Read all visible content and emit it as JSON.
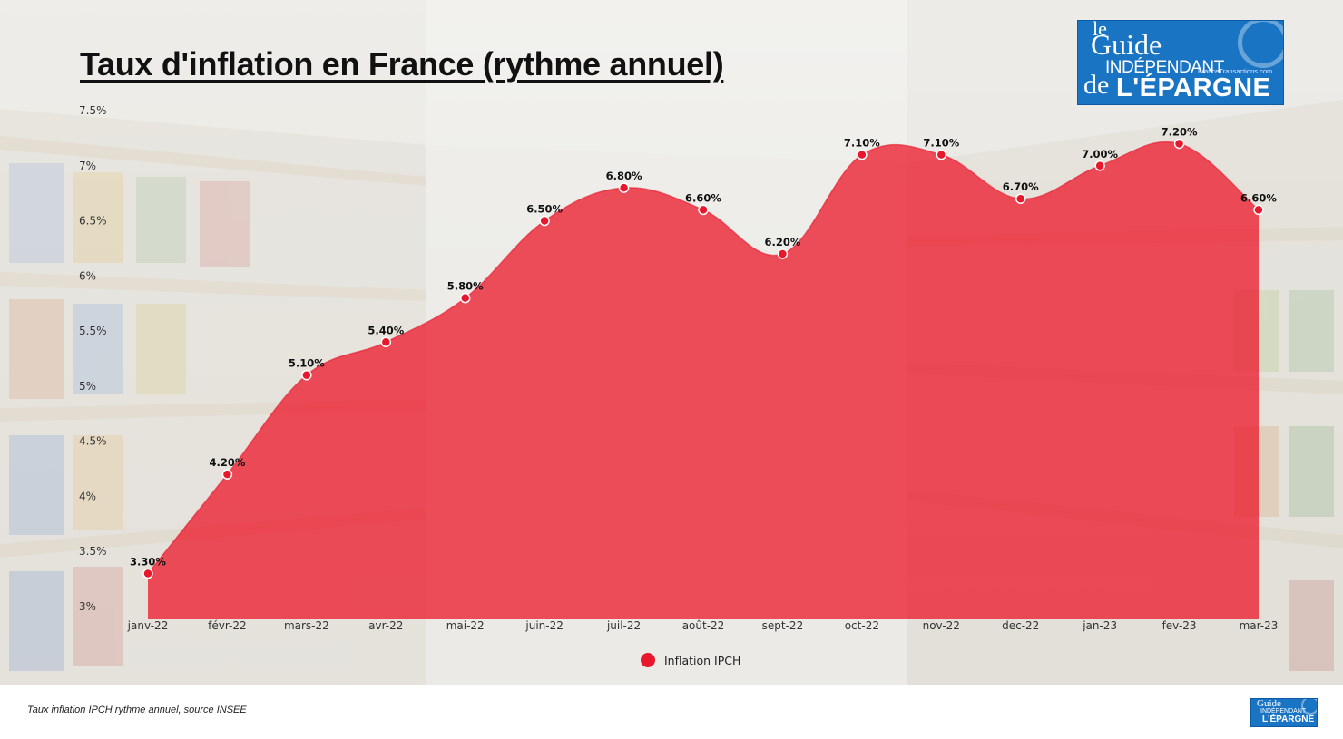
{
  "title": "Taux d'inflation en France (rythme annuel)",
  "source_note": "Taux inflation IPCH rythme annuel, source INSEE",
  "logo": {
    "le": "le",
    "guide": "Guide",
    "independant": "INDÉPENDANT",
    "de": "de",
    "epargne": "L'ÉPARGNE",
    "site": "FranceTransactions.com"
  },
  "colors": {
    "series": "#e8182c",
    "area_fill": "rgba(236, 30, 48, 0.78)",
    "logo_blue": "#1a74c4"
  },
  "chart_data": {
    "type": "area",
    "title": "Taux d'inflation en France (rythme annuel)",
    "xlabel": "",
    "ylabel": "",
    "categories": [
      "janv-22",
      "févr-22",
      "mars-22",
      "avr-22",
      "mai-22",
      "juin-22",
      "juil-22",
      "août-22",
      "sept-22",
      "oct-22",
      "nov-22",
      "dec-22",
      "jan-23",
      "fev-23",
      "mar-23"
    ],
    "series": [
      {
        "name": "Inflation IPCH",
        "values": [
          3.3,
          4.2,
          5.1,
          5.4,
          5.8,
          6.5,
          6.8,
          6.6,
          6.2,
          7.1,
          7.1,
          6.7,
          7.0,
          7.2,
          6.6
        ],
        "labels": [
          "3.30%",
          "4.20%",
          "5.10%",
          "5.40%",
          "5.80%",
          "6.50%",
          "6.80%",
          "6.60%",
          "6.20%",
          "7.10%",
          "7.10%",
          "6.70%",
          "7.00%",
          "7.20%",
          "6.60%"
        ]
      }
    ],
    "yticks": [
      "3%",
      "3.5%",
      "4%",
      "4.5%",
      "5%",
      "5.5%",
      "6%",
      "6.5%",
      "7%",
      "7.5%"
    ],
    "ytick_values": [
      3,
      3.5,
      4,
      4.5,
      5,
      5.5,
      6,
      6.5,
      7,
      7.5
    ],
    "ylim": [
      3,
      7.5
    ],
    "grid": false,
    "legend_position": "bottom-center"
  }
}
